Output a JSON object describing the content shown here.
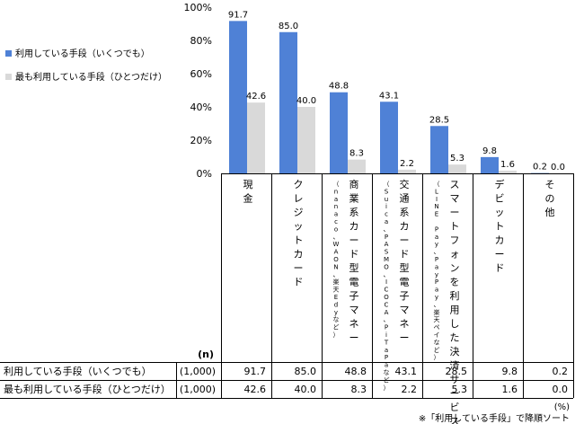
{
  "chart_data": {
    "type": "bar",
    "ylim": [
      0,
      100
    ],
    "ytick_step": 20,
    "ytick_suffix": "%",
    "grid": false,
    "legend_position": "left",
    "categories": [
      {
        "main": "現金",
        "sub": ""
      },
      {
        "main": "クレジットカード",
        "sub": ""
      },
      {
        "main": "商業系カード型電子マネー",
        "sub": "（nanaco、WAON、楽天Edyなど）"
      },
      {
        "main": "交通系カード型電子マネー",
        "sub": "（Suica、PASMO、ICOCA、PiTaPaなど）"
      },
      {
        "main": "スマートフォンを利用した決済サービス",
        "sub": "（LINE Pay、PayPay、楽天ペイなど）"
      },
      {
        "main": "デビットカード",
        "sub": ""
      },
      {
        "main": "その他",
        "sub": ""
      }
    ],
    "series": [
      {
        "name": "利用している手段（いくつでも）",
        "color": "#4f81d6",
        "values": [
          91.7,
          85.0,
          48.8,
          43.1,
          28.5,
          9.8,
          0.2
        ]
      },
      {
        "name": "最も利用している手段（ひとつだけ）",
        "color": "#d9d9d9",
        "values": [
          42.6,
          40.0,
          8.3,
          2.2,
          5.3,
          1.6,
          0.0
        ]
      }
    ],
    "table": {
      "n_header": "(n)",
      "rows": [
        {
          "label": "利用している手段（いくつでも）",
          "n": "(1,000)",
          "values": [
            "91.7",
            "85.0",
            "48.8",
            "43.1",
            "28.5",
            "9.8",
            "0.2"
          ]
        },
        {
          "label": "最も利用している手段（ひとつだけ）",
          "n": "(1,000)",
          "values": [
            "42.6",
            "40.0",
            "8.3",
            "2.2",
            "5.3",
            "1.6",
            "0.0"
          ]
        }
      ]
    },
    "unit_note": "(%)",
    "footnote": "※「利用している手段」で降順ソート"
  }
}
